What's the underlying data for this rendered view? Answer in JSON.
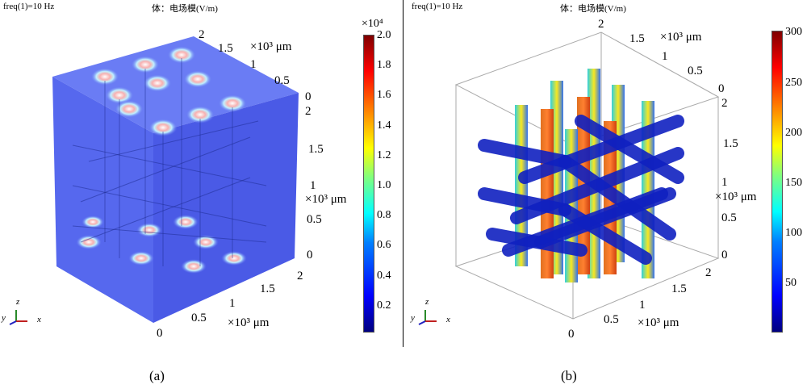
{
  "panels": [
    {
      "caption": "(a)",
      "freq": "freq(1)=10 Hz",
      "expr": "体：电场模(V/m)",
      "colorbar": {
        "multiplier": "×10⁴",
        "ticks": [
          "2.0",
          "1.8",
          "1.6",
          "1.4",
          "1.2",
          "1.0",
          "0.8",
          "0.6",
          "0.4",
          "0.2"
        ],
        "min": 0,
        "max": 2.0
      },
      "axes": {
        "unit": "×10³ μm",
        "x_ticks": [
          "0",
          "0.5",
          "1",
          "1.5",
          "2"
        ],
        "y_ticks": [
          "0",
          "0.5",
          "1",
          "1.5",
          "2"
        ],
        "z_ticks": [
          "0",
          "0.5",
          "1",
          "1.5",
          "2"
        ]
      },
      "triad": {
        "x": "x",
        "y": "y",
        "z": "z"
      }
    },
    {
      "caption": "(b)",
      "freq": "freq(1)=10 Hz",
      "expr": "体：电场模(V/m)",
      "colorbar": {
        "ticks": [
          "300",
          "250",
          "200",
          "150",
          "100",
          "50"
        ],
        "min": 0,
        "max": 300
      },
      "axes": {
        "unit": "×10³ μm",
        "x_ticks": [
          "0",
          "0.5",
          "1",
          "1.5",
          "2"
        ],
        "y_ticks": [
          "0",
          "0.5",
          "1",
          "1.5",
          "2"
        ],
        "z_ticks": [
          "0",
          "0.5",
          "1",
          "1.5",
          "2"
        ]
      },
      "triad": {
        "x": "x",
        "y": "y",
        "z": "z"
      }
    }
  ]
}
